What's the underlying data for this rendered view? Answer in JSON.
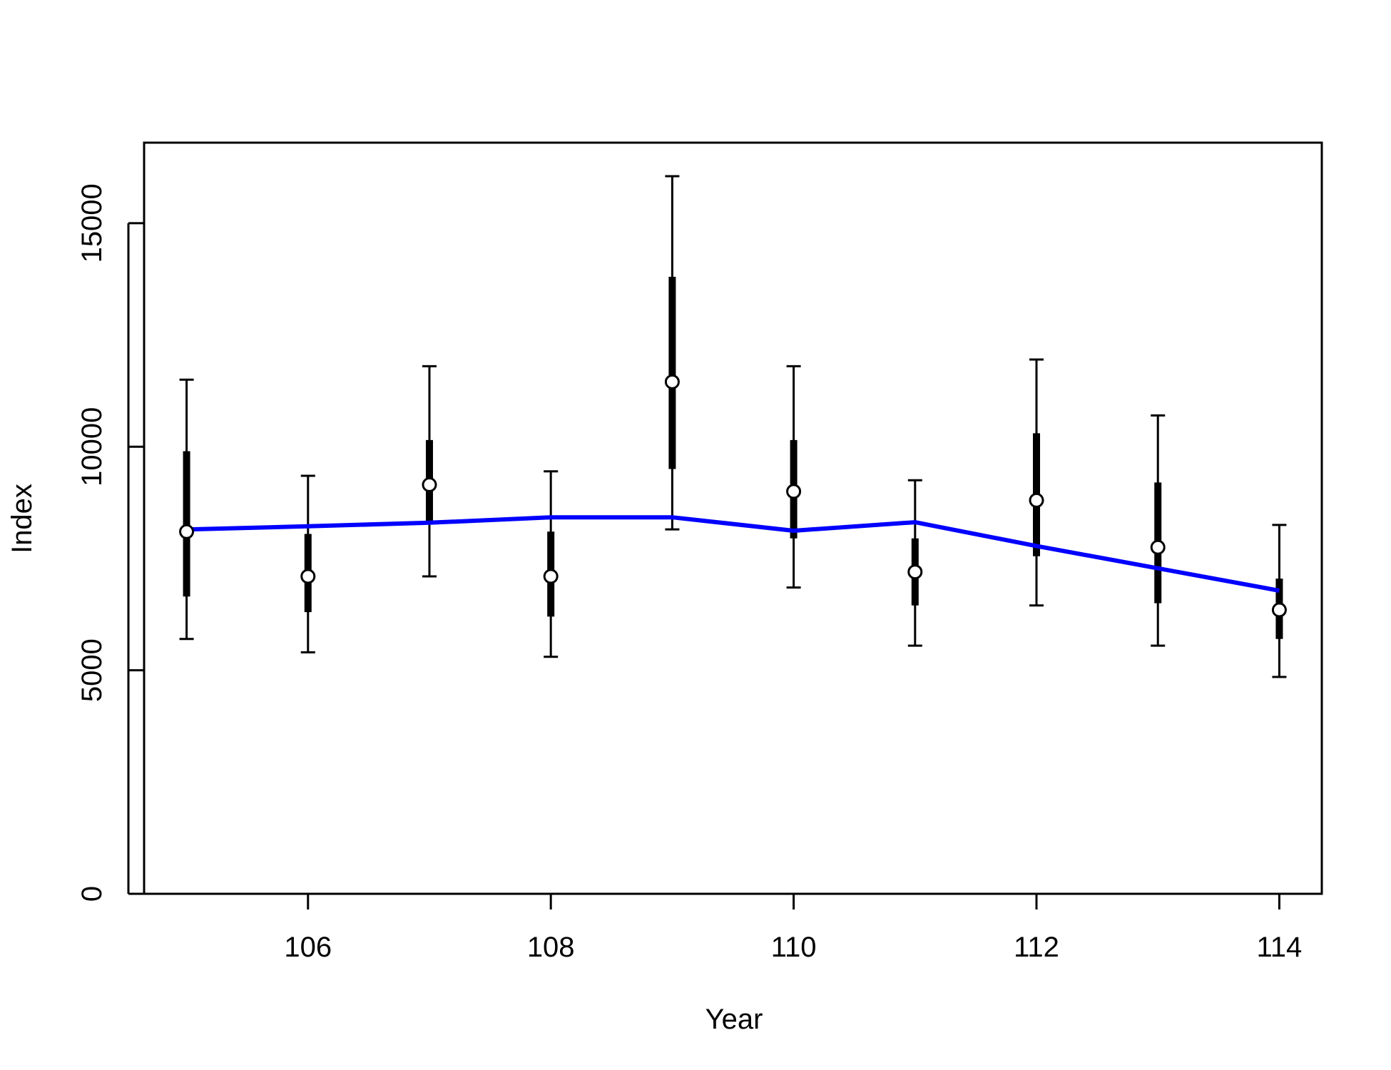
{
  "chart_data": {
    "type": "line",
    "title": "",
    "xlabel": "Year",
    "ylabel": "Index",
    "xlim": [
      104.65,
      114.35
    ],
    "ylim": [
      0,
      16800
    ],
    "xticks": [
      106,
      108,
      110,
      112,
      114
    ],
    "yticks": [
      0,
      5000,
      10000,
      15000
    ],
    "grid": false,
    "colors": {
      "fit_line": "#0000ff",
      "whiskers": "#000000",
      "points_fill": "#ffffff"
    },
    "series": [
      {
        "type": "points_with_intervals",
        "x": [
          105,
          106,
          107,
          108,
          109,
          110,
          111,
          112,
          113,
          114
        ],
        "y": [
          8100,
          7100,
          9150,
          7100,
          11450,
          9000,
          7200,
          8800,
          7750,
          6350
        ],
        "inner_lo": [
          6650,
          6300,
          8300,
          6200,
          9500,
          7950,
          6450,
          7550,
          6500,
          5700
        ],
        "inner_hi": [
          9900,
          8050,
          10150,
          8100,
          13800,
          10150,
          7950,
          10300,
          9200,
          7050
        ],
        "outer_lo": [
          5700,
          5400,
          7100,
          5300,
          8150,
          6850,
          5550,
          6450,
          5550,
          4850
        ],
        "outer_hi": [
          11500,
          9350,
          11800,
          9450,
          16050,
          11800,
          9250,
          11950,
          10700,
          8250
        ]
      },
      {
        "type": "fitted_line",
        "x": [
          105,
          106,
          107,
          108,
          109,
          110,
          111,
          112,
          113,
          114
        ],
        "y": [
          8150,
          8220,
          8300,
          8420,
          8420,
          8120,
          8310,
          7780,
          7280,
          6780
        ]
      }
    ]
  }
}
